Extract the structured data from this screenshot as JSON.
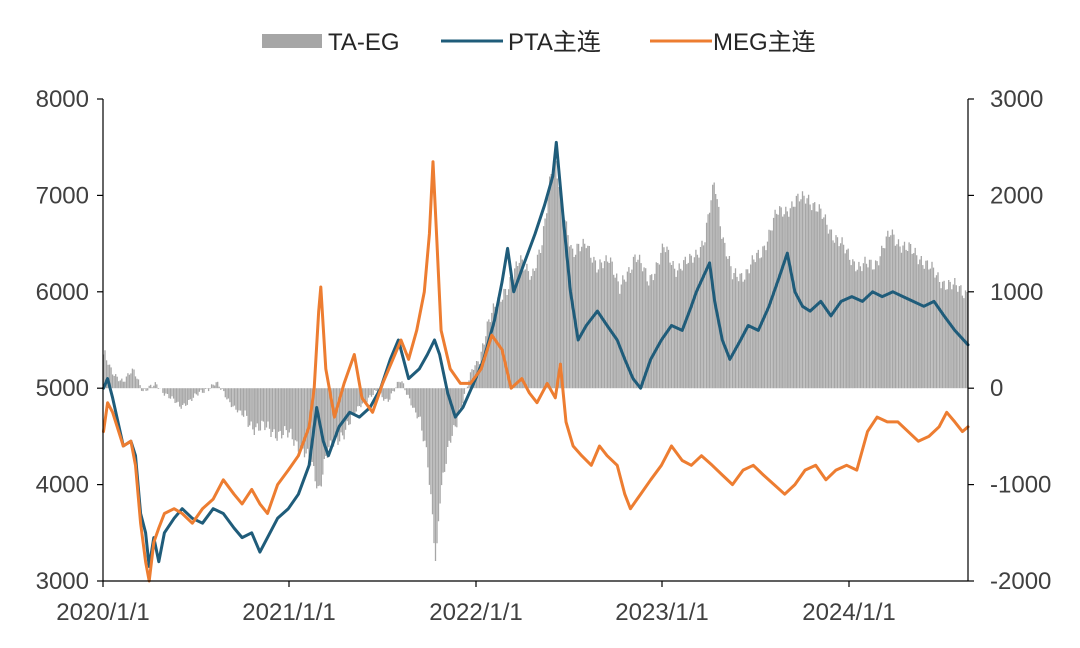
{
  "chart_data": {
    "type": "line+bar",
    "title": "",
    "x_tick_labels": [
      "2020/1/1",
      "2021/1/1",
      "2022/1/1",
      "2023/1/1",
      "2024/1/1"
    ],
    "left_axis": {
      "min": 3000,
      "max": 8000,
      "ticks": [
        3000,
        4000,
        5000,
        6000,
        7000,
        8000
      ]
    },
    "right_axis": {
      "min": -2000,
      "max": 3000,
      "ticks": [
        -2000,
        -1000,
        0,
        1000,
        2000,
        3000
      ]
    },
    "time_range": [
      "2020-01-01",
      "2024-08-31"
    ],
    "series": [
      {
        "name": "TA-EG",
        "type": "bar",
        "axis": "right",
        "color": "#a6a6a6",
        "points": [
          [
            "2020-01-02",
            350
          ],
          [
            "2020-01-20",
            150
          ],
          [
            "2020-02-10",
            80
          ],
          [
            "2020-03-01",
            180
          ],
          [
            "2020-03-20",
            -20
          ],
          [
            "2020-04-15",
            30
          ],
          [
            "2020-05-10",
            -80
          ],
          [
            "2020-06-01",
            -200
          ],
          [
            "2020-06-20",
            -120
          ],
          [
            "2020-07-15",
            -40
          ],
          [
            "2020-08-10",
            60
          ],
          [
            "2020-09-01",
            -100
          ],
          [
            "2020-09-25",
            -250
          ],
          [
            "2020-10-20",
            -380
          ],
          [
            "2020-11-15",
            -420
          ],
          [
            "2020-12-10",
            -460
          ],
          [
            "2021-01-05",
            -500
          ],
          [
            "2021-01-25",
            -600
          ],
          [
            "2021-02-15",
            -800
          ],
          [
            "2021-03-01",
            -1050
          ],
          [
            "2021-03-15",
            -700
          ],
          [
            "2021-04-05",
            -550
          ],
          [
            "2021-05-01",
            -350
          ],
          [
            "2021-05-25",
            -150
          ],
          [
            "2021-06-20",
            -50
          ],
          [
            "2021-07-15",
            -120
          ],
          [
            "2021-08-10",
            80
          ],
          [
            "2021-08-25",
            -80
          ],
          [
            "2021-09-15",
            -350
          ],
          [
            "2021-10-01",
            -700
          ],
          [
            "2021-10-12",
            -1350
          ],
          [
            "2021-10-18",
            -1850
          ],
          [
            "2021-10-25",
            -1200
          ],
          [
            "2021-11-15",
            -500
          ],
          [
            "2021-12-10",
            -150
          ],
          [
            "2021-12-28",
            200
          ],
          [
            "2022-01-15",
            350
          ],
          [
            "2022-02-01",
            700
          ],
          [
            "2022-02-15",
            950
          ],
          [
            "2022-03-10",
            1000
          ],
          [
            "2022-04-01",
            1400
          ],
          [
            "2022-04-25",
            1100
          ],
          [
            "2022-05-15",
            1550
          ],
          [
            "2022-06-01",
            2200
          ],
          [
            "2022-06-10",
            2300
          ],
          [
            "2022-06-25",
            1900
          ],
          [
            "2022-07-15",
            1350
          ],
          [
            "2022-08-10",
            1550
          ],
          [
            "2022-09-01",
            1200
          ],
          [
            "2022-09-25",
            1400
          ],
          [
            "2022-10-15",
            1000
          ],
          [
            "2022-11-15",
            1400
          ],
          [
            "2022-12-10",
            1100
          ],
          [
            "2023-01-10",
            1450
          ],
          [
            "2023-02-01",
            1250
          ],
          [
            "2023-03-01",
            1300
          ],
          [
            "2023-04-01",
            1550
          ],
          [
            "2023-04-20",
            2150
          ],
          [
            "2023-05-05",
            1600
          ],
          [
            "2023-05-25",
            1150
          ],
          [
            "2023-06-20",
            1200
          ],
          [
            "2023-07-20",
            1400
          ],
          [
            "2023-08-20",
            1800
          ],
          [
            "2023-09-20",
            1900
          ],
          [
            "2023-10-20",
            2000
          ],
          [
            "2023-11-15",
            1800
          ],
          [
            "2023-12-10",
            1600
          ],
          [
            "2024-01-05",
            1400
          ],
          [
            "2024-02-01",
            1250
          ],
          [
            "2024-03-01",
            1300
          ],
          [
            "2024-04-01",
            1600
          ],
          [
            "2024-05-01",
            1450
          ],
          [
            "2024-06-01",
            1350
          ],
          [
            "2024-07-01",
            1150
          ],
          [
            "2024-08-01",
            1050
          ],
          [
            "2024-08-31",
            1000
          ]
        ]
      },
      {
        "name": "PTA主连",
        "type": "line",
        "axis": "left",
        "color": "#1f5c7a",
        "points": [
          [
            "2020-01-02",
            5000
          ],
          [
            "2020-01-10",
            5100
          ],
          [
            "2020-01-20",
            4900
          ],
          [
            "2020-02-10",
            4400
          ],
          [
            "2020-02-25",
            4450
          ],
          [
            "2020-03-05",
            4300
          ],
          [
            "2020-03-15",
            3700
          ],
          [
            "2020-03-25",
            3500
          ],
          [
            "2020-04-01",
            3150
          ],
          [
            "2020-04-10",
            3450
          ],
          [
            "2020-04-20",
            3200
          ],
          [
            "2020-05-01",
            3500
          ],
          [
            "2020-05-20",
            3650
          ],
          [
            "2020-06-05",
            3750
          ],
          [
            "2020-06-25",
            3650
          ],
          [
            "2020-07-15",
            3600
          ],
          [
            "2020-08-05",
            3750
          ],
          [
            "2020-08-25",
            3700
          ],
          [
            "2020-09-15",
            3550
          ],
          [
            "2020-10-01",
            3450
          ],
          [
            "2020-10-20",
            3500
          ],
          [
            "2020-11-05",
            3300
          ],
          [
            "2020-11-20",
            3450
          ],
          [
            "2020-12-10",
            3650
          ],
          [
            "2020-12-31",
            3750
          ],
          [
            "2021-01-20",
            3900
          ],
          [
            "2021-02-10",
            4200
          ],
          [
            "2021-02-25",
            4800
          ],
          [
            "2021-03-10",
            4450
          ],
          [
            "2021-03-20",
            4300
          ],
          [
            "2021-04-10",
            4600
          ],
          [
            "2021-05-01",
            4750
          ],
          [
            "2021-05-20",
            4700
          ],
          [
            "2021-06-10",
            4800
          ],
          [
            "2021-07-01",
            5000
          ],
          [
            "2021-07-20",
            5300
          ],
          [
            "2021-08-05",
            5500
          ],
          [
            "2021-08-25",
            5100
          ],
          [
            "2021-09-15",
            5200
          ],
          [
            "2021-10-01",
            5350
          ],
          [
            "2021-10-15",
            5500
          ],
          [
            "2021-10-25",
            5350
          ],
          [
            "2021-11-10",
            4950
          ],
          [
            "2021-11-25",
            4700
          ],
          [
            "2021-12-10",
            4800
          ],
          [
            "2021-12-31",
            5050
          ],
          [
            "2022-01-20",
            5300
          ],
          [
            "2022-02-10",
            5700
          ],
          [
            "2022-02-25",
            6100
          ],
          [
            "2022-03-08",
            6450
          ],
          [
            "2022-03-20",
            6000
          ],
          [
            "2022-04-10",
            6300
          ],
          [
            "2022-05-01",
            6600
          ],
          [
            "2022-05-20",
            6900
          ],
          [
            "2022-06-05",
            7200
          ],
          [
            "2022-06-12",
            7550
          ],
          [
            "2022-06-25",
            6800
          ],
          [
            "2022-07-10",
            6000
          ],
          [
            "2022-07-25",
            5500
          ],
          [
            "2022-08-10",
            5650
          ],
          [
            "2022-09-01",
            5800
          ],
          [
            "2022-09-20",
            5650
          ],
          [
            "2022-10-10",
            5500
          ],
          [
            "2022-10-25",
            5300
          ],
          [
            "2022-11-10",
            5100
          ],
          [
            "2022-11-25",
            5000
          ],
          [
            "2022-12-15",
            5300
          ],
          [
            "2023-01-05",
            5500
          ],
          [
            "2023-01-25",
            5650
          ],
          [
            "2023-02-15",
            5600
          ],
          [
            "2023-03-05",
            5850
          ],
          [
            "2023-03-15",
            6000
          ],
          [
            "2023-04-10",
            6300
          ],
          [
            "2023-04-20",
            5900
          ],
          [
            "2023-05-05",
            5500
          ],
          [
            "2023-05-20",
            5300
          ],
          [
            "2023-06-10",
            5500
          ],
          [
            "2023-06-25",
            5650
          ],
          [
            "2023-07-15",
            5600
          ],
          [
            "2023-08-05",
            5850
          ],
          [
            "2023-08-25",
            6150
          ],
          [
            "2023-09-10",
            6400
          ],
          [
            "2023-09-25",
            6000
          ],
          [
            "2023-10-10",
            5850
          ],
          [
            "2023-10-25",
            5800
          ],
          [
            "2023-11-15",
            5900
          ],
          [
            "2023-12-05",
            5750
          ],
          [
            "2023-12-25",
            5900
          ],
          [
            "2024-01-15",
            5950
          ],
          [
            "2024-02-05",
            5900
          ],
          [
            "2024-02-25",
            6000
          ],
          [
            "2024-03-15",
            5950
          ],
          [
            "2024-04-05",
            6000
          ],
          [
            "2024-04-25",
            5950
          ],
          [
            "2024-05-15",
            5900
          ],
          [
            "2024-06-05",
            5850
          ],
          [
            "2024-06-25",
            5900
          ],
          [
            "2024-07-15",
            5750
          ],
          [
            "2024-08-05",
            5600
          ],
          [
            "2024-08-31",
            5450
          ]
        ]
      },
      {
        "name": "MEG主连",
        "type": "line",
        "axis": "left",
        "color": "#ed7d31",
        "points": [
          [
            "2020-01-02",
            4550
          ],
          [
            "2020-01-10",
            4850
          ],
          [
            "2020-01-20",
            4750
          ],
          [
            "2020-02-10",
            4400
          ],
          [
            "2020-02-25",
            4450
          ],
          [
            "2020-03-05",
            4200
          ],
          [
            "2020-03-15",
            3600
          ],
          [
            "2020-03-25",
            3200
          ],
          [
            "2020-04-01",
            3000
          ],
          [
            "2020-04-10",
            3400
          ],
          [
            "2020-04-20",
            3550
          ],
          [
            "2020-05-01",
            3700
          ],
          [
            "2020-05-20",
            3750
          ],
          [
            "2020-06-05",
            3700
          ],
          [
            "2020-06-25",
            3600
          ],
          [
            "2020-07-15",
            3750
          ],
          [
            "2020-08-05",
            3850
          ],
          [
            "2020-08-25",
            4050
          ],
          [
            "2020-09-15",
            3900
          ],
          [
            "2020-10-01",
            3800
          ],
          [
            "2020-10-20",
            3950
          ],
          [
            "2020-11-05",
            3800
          ],
          [
            "2020-11-20",
            3700
          ],
          [
            "2020-12-10",
            4000
          ],
          [
            "2020-12-31",
            4150
          ],
          [
            "2021-01-20",
            4300
          ],
          [
            "2021-02-10",
            4600
          ],
          [
            "2021-02-20",
            5000
          ],
          [
            "2021-03-01",
            5800
          ],
          [
            "2021-03-05",
            6050
          ],
          [
            "2021-03-15",
            5200
          ],
          [
            "2021-04-01",
            4700
          ],
          [
            "2021-04-20",
            5050
          ],
          [
            "2021-05-10",
            5350
          ],
          [
            "2021-05-25",
            4900
          ],
          [
            "2021-06-15",
            4750
          ],
          [
            "2021-07-05",
            5050
          ],
          [
            "2021-07-25",
            5300
          ],
          [
            "2021-08-10",
            5500
          ],
          [
            "2021-08-25",
            5300
          ],
          [
            "2021-09-10",
            5600
          ],
          [
            "2021-09-25",
            6000
          ],
          [
            "2021-10-05",
            6600
          ],
          [
            "2021-10-12",
            7350
          ],
          [
            "2021-10-20",
            6500
          ],
          [
            "2021-10-28",
            5600
          ],
          [
            "2021-11-15",
            5200
          ],
          [
            "2021-12-05",
            5050
          ],
          [
            "2021-12-25",
            5050
          ],
          [
            "2022-01-15",
            5200
          ],
          [
            "2022-02-05",
            5550
          ],
          [
            "2022-02-25",
            5400
          ],
          [
            "2022-03-15",
            5000
          ],
          [
            "2022-04-05",
            5100
          ],
          [
            "2022-04-20",
            4950
          ],
          [
            "2022-05-05",
            4850
          ],
          [
            "2022-05-25",
            5050
          ],
          [
            "2022-06-10",
            4900
          ],
          [
            "2022-06-20",
            5250
          ],
          [
            "2022-07-01",
            4650
          ],
          [
            "2022-07-15",
            4400
          ],
          [
            "2022-08-01",
            4300
          ],
          [
            "2022-08-20",
            4200
          ],
          [
            "2022-09-05",
            4400
          ],
          [
            "2022-09-20",
            4300
          ],
          [
            "2022-10-10",
            4200
          ],
          [
            "2022-10-25",
            3900
          ],
          [
            "2022-11-05",
            3750
          ],
          [
            "2022-11-25",
            3900
          ],
          [
            "2022-12-15",
            4050
          ],
          [
            "2023-01-05",
            4200
          ],
          [
            "2023-01-25",
            4400
          ],
          [
            "2023-02-15",
            4250
          ],
          [
            "2023-03-05",
            4200
          ],
          [
            "2023-03-25",
            4300
          ],
          [
            "2023-04-15",
            4200
          ],
          [
            "2023-05-05",
            4100
          ],
          [
            "2023-05-25",
            4000
          ],
          [
            "2023-06-15",
            4150
          ],
          [
            "2023-07-05",
            4200
          ],
          [
            "2023-07-25",
            4100
          ],
          [
            "2023-08-15",
            4000
          ],
          [
            "2023-09-05",
            3900
          ],
          [
            "2023-09-25",
            4000
          ],
          [
            "2023-10-15",
            4150
          ],
          [
            "2023-11-05",
            4200
          ],
          [
            "2023-11-25",
            4050
          ],
          [
            "2023-12-15",
            4150
          ],
          [
            "2024-01-05",
            4200
          ],
          [
            "2024-01-25",
            4150
          ],
          [
            "2024-02-15",
            4550
          ],
          [
            "2024-03-05",
            4700
          ],
          [
            "2024-03-25",
            4650
          ],
          [
            "2024-04-15",
            4650
          ],
          [
            "2024-05-05",
            4550
          ],
          [
            "2024-05-25",
            4450
          ],
          [
            "2024-06-15",
            4500
          ],
          [
            "2024-07-05",
            4600
          ],
          [
            "2024-07-20",
            4750
          ],
          [
            "2024-08-05",
            4650
          ],
          [
            "2024-08-20",
            4550
          ],
          [
            "2024-08-31",
            4600
          ]
        ]
      }
    ]
  }
}
